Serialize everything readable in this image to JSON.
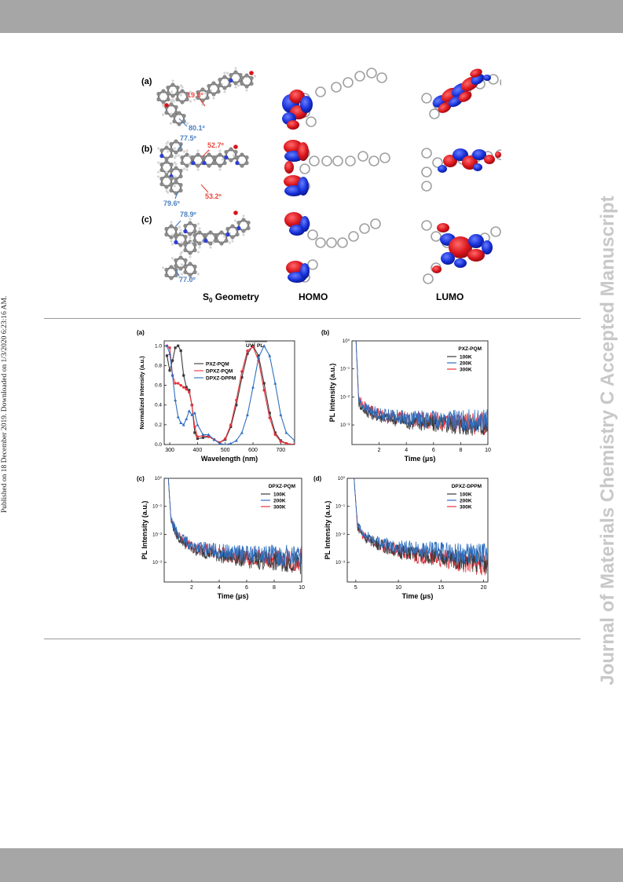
{
  "side_note": "Published on 18 December 2019. Downloaded on 1/3/2020 6:23:16 AM.",
  "watermark": "Journal of Materials Chemistry C Accepted Manuscript",
  "figure_top": {
    "rows": [
      {
        "label": "(a)",
        "angles": [
          "19.8º",
          "80.1º"
        ]
      },
      {
        "label": "(b)",
        "angles": [
          "77.5º",
          "52.7º",
          "53.2º",
          "79.6º"
        ]
      },
      {
        "label": "(c)",
        "angles": [
          "78.9º",
          "77.0º"
        ]
      }
    ],
    "columns": {
      "geometry": "S",
      "geometry_sub": "0",
      "geometry_rest": " Geometry",
      "homo": "HOMO",
      "lumo": "LUMO"
    },
    "colors": {
      "angle_red": "#e8473f",
      "angle_blue": "#4a7fc1",
      "orbital_red": "#d9141c",
      "orbital_blue": "#1530d8"
    }
  },
  "figure_bottom": {
    "panels": [
      {
        "label": "(a)",
        "ylabel": "Normalized Intensity (a.u.)",
        "xlabel": "Wavelength (nm)",
        "xticks": [
          "300",
          "400",
          "500",
          "600",
          "700"
        ],
        "yticks": [
          "0.0",
          "0.2",
          "0.4",
          "0.6",
          "0.8",
          "1.0"
        ],
        "legend_header": "UV",
        "legend_header2": "PL",
        "legend": [
          "PXZ-PQM",
          "DPXZ-PQM",
          "DPXZ-DPPM"
        ]
      },
      {
        "label": "(b)",
        "title": "PXZ-PQM",
        "ylabel": "PL Intensity (a.u.)",
        "xlabel": "Time (μs)",
        "xticks": [
          "2",
          "4",
          "6",
          "8",
          "10"
        ],
        "legend": [
          "100K",
          "200K",
          "300K"
        ]
      },
      {
        "label": "(c)",
        "title": "DPXZ-PQM",
        "ylabel": "PL Intensity (a.u.)",
        "xlabel": "Time (μs)",
        "xticks": [
          "2",
          "4",
          "6",
          "8",
          "10"
        ],
        "legend": [
          "100K",
          "200K",
          "300K"
        ]
      },
      {
        "label": "(d)",
        "title": "DPXZ-DPPM",
        "ylabel": "PL Intensity (a.u.)",
        "xlabel": "Time (μs)",
        "xticks": [
          "5",
          "10",
          "15",
          "20"
        ],
        "legend": [
          "100K",
          "200K",
          "300K"
        ]
      }
    ],
    "log_ticks": [
      "10⁰",
      "10⁻¹",
      "10⁻²",
      "10⁻³"
    ],
    "series_colors": {
      "black": "#3a3a3a",
      "red": "#e8333c",
      "blue": "#2e6fc0"
    }
  },
  "chart_data": [
    {
      "type": "line",
      "xlabel": "Wavelength (nm)",
      "ylabel": "Normalized Intensity (a.u.)",
      "xlim": [
        280,
        750
      ],
      "ylim": [
        0,
        1.05
      ],
      "series": [
        {
          "name": "PXZ-PQM",
          "x": [
            290,
            300,
            310,
            320,
            330,
            340,
            350,
            360,
            370,
            380,
            390,
            400,
            420,
            440,
            460,
            480,
            500,
            520,
            540,
            560,
            580,
            600,
            620,
            640,
            660,
            680,
            700,
            720,
            750
          ],
          "y": [
            0.9,
            0.75,
            0.85,
            0.98,
            1.0,
            0.95,
            0.7,
            0.58,
            0.55,
            0.4,
            0.12,
            0.06,
            0.07,
            0.08,
            0.05,
            0.02,
            0.05,
            0.18,
            0.4,
            0.68,
            0.92,
            1.0,
            0.9,
            0.62,
            0.32,
            0.12,
            0.04,
            0.01,
            0.0
          ]
        },
        {
          "name": "DPXZ-PQM",
          "x": [
            290,
            300,
            310,
            320,
            330,
            340,
            350,
            360,
            370,
            380,
            390,
            400,
            420,
            440,
            460,
            480,
            500,
            520,
            540,
            560,
            580,
            600,
            620,
            640,
            660,
            680,
            700,
            720,
            750
          ],
          "y": [
            1.0,
            0.98,
            0.7,
            0.62,
            0.62,
            0.6,
            0.58,
            0.56,
            0.53,
            0.4,
            0.18,
            0.08,
            0.09,
            0.08,
            0.05,
            0.02,
            0.06,
            0.2,
            0.45,
            0.74,
            0.95,
            0.99,
            0.85,
            0.55,
            0.27,
            0.1,
            0.03,
            0.01,
            0.0
          ]
        },
        {
          "name": "DPXZ-DPPM",
          "x": [
            290,
            300,
            310,
            320,
            330,
            340,
            350,
            360,
            370,
            380,
            390,
            400,
            420,
            440,
            460,
            480,
            500,
            520,
            540,
            560,
            580,
            600,
            620,
            640,
            660,
            680,
            700,
            720,
            750
          ],
          "y": [
            1.0,
            0.92,
            0.7,
            0.45,
            0.28,
            0.22,
            0.2,
            0.26,
            0.34,
            0.3,
            0.32,
            0.2,
            0.1,
            0.1,
            0.05,
            0.01,
            0.0,
            0.01,
            0.04,
            0.12,
            0.3,
            0.58,
            0.88,
            1.0,
            0.9,
            0.62,
            0.3,
            0.12,
            0.04
          ]
        }
      ]
    },
    {
      "type": "line",
      "title": "PXZ-PQM",
      "xlabel": "Time (μs)",
      "ylabel": "PL Intensity (a.u.)",
      "xlim": [
        0,
        10
      ],
      "ylog": true,
      "ylim": [
        0.0002,
        1
      ],
      "series": [
        {
          "name": "100K",
          "x": [
            0.3,
            0.5,
            1,
            2,
            4,
            6,
            8,
            10
          ],
          "y": [
            1.0,
            0.006,
            0.003,
            0.002,
            0.0013,
            0.0011,
            0.001,
            0.0009
          ]
        },
        {
          "name": "200K",
          "x": [
            0.3,
            0.5,
            1,
            2,
            4,
            6,
            8,
            10
          ],
          "y": [
            1.0,
            0.007,
            0.004,
            0.0025,
            0.0018,
            0.0016,
            0.0015,
            0.0014
          ]
        },
        {
          "name": "300K",
          "x": [
            0.3,
            0.5,
            1,
            2,
            4,
            6,
            8,
            10
          ],
          "y": [
            1.0,
            0.008,
            0.004,
            0.0024,
            0.0017,
            0.0014,
            0.0012,
            0.0011
          ]
        }
      ]
    },
    {
      "type": "line",
      "title": "DPXZ-PQM",
      "xlabel": "Time (μs)",
      "ylabel": "PL Intensity (a.u.)",
      "xlim": [
        0,
        10
      ],
      "ylog": true,
      "ylim": [
        0.0002,
        1
      ],
      "series": [
        {
          "name": "100K",
          "x": [
            0.3,
            0.5,
            1,
            2,
            4,
            6,
            8,
            10
          ],
          "y": [
            1.0,
            0.03,
            0.008,
            0.003,
            0.0018,
            0.0013,
            0.0011,
            0.001
          ]
        },
        {
          "name": "200K",
          "x": [
            0.3,
            0.5,
            1,
            2,
            4,
            6,
            8,
            10
          ],
          "y": [
            1.0,
            0.03,
            0.009,
            0.004,
            0.0025,
            0.002,
            0.0018,
            0.0017
          ]
        },
        {
          "name": "300K",
          "x": [
            0.3,
            0.5,
            1,
            2,
            4,
            6,
            8,
            10
          ],
          "y": [
            1.0,
            0.03,
            0.009,
            0.0035,
            0.002,
            0.0016,
            0.0013,
            0.0012
          ]
        }
      ]
    },
    {
      "type": "line",
      "title": "DPXZ-DPPM",
      "xlabel": "Time (μs)",
      "ylabel": "PL Intensity (a.u.)",
      "xlim": [
        4,
        20.5
      ],
      "ylog": true,
      "ylim": [
        0.0002,
        1
      ],
      "series": [
        {
          "name": "100K",
          "x": [
            4.8,
            5.2,
            6,
            8,
            10,
            12,
            15,
            18,
            20.5
          ],
          "y": [
            1.0,
            0.02,
            0.008,
            0.004,
            0.0025,
            0.002,
            0.0015,
            0.0012,
            0.001
          ]
        },
        {
          "name": "200K",
          "x": [
            4.8,
            5.2,
            6,
            8,
            10,
            12,
            15,
            18,
            20.5
          ],
          "y": [
            1.0,
            0.02,
            0.009,
            0.005,
            0.0035,
            0.003,
            0.0025,
            0.002,
            0.0018
          ]
        },
        {
          "name": "300K",
          "x": [
            4.8,
            5.2,
            6,
            8,
            10,
            12,
            15,
            18,
            20.5
          ],
          "y": [
            1.0,
            0.02,
            0.008,
            0.004,
            0.0025,
            0.0018,
            0.0013,
            0.001,
            0.0008
          ]
        }
      ]
    }
  ]
}
